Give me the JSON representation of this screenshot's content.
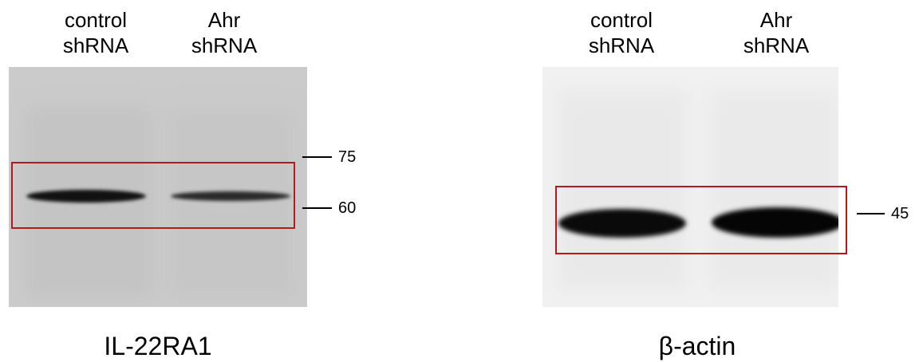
{
  "panels": [
    {
      "lanes": [
        {
          "line1": "control",
          "line2": "shRNA"
        },
        {
          "line1": "Ahr",
          "line2": "shRNA"
        }
      ],
      "markers": [
        "75",
        "60"
      ],
      "protein": "IL-22RA1",
      "highlight_color": "#b3191e",
      "background_color": "#cbcbcb"
    },
    {
      "lanes": [
        {
          "line1": "control",
          "line2": "shRNA"
        },
        {
          "line1": "Ahr",
          "line2": "shRNA"
        }
      ],
      "markers": [
        "45"
      ],
      "protein": "β-actin",
      "highlight_color": "#b3191e",
      "background_color": "#f1f1f1"
    }
  ]
}
